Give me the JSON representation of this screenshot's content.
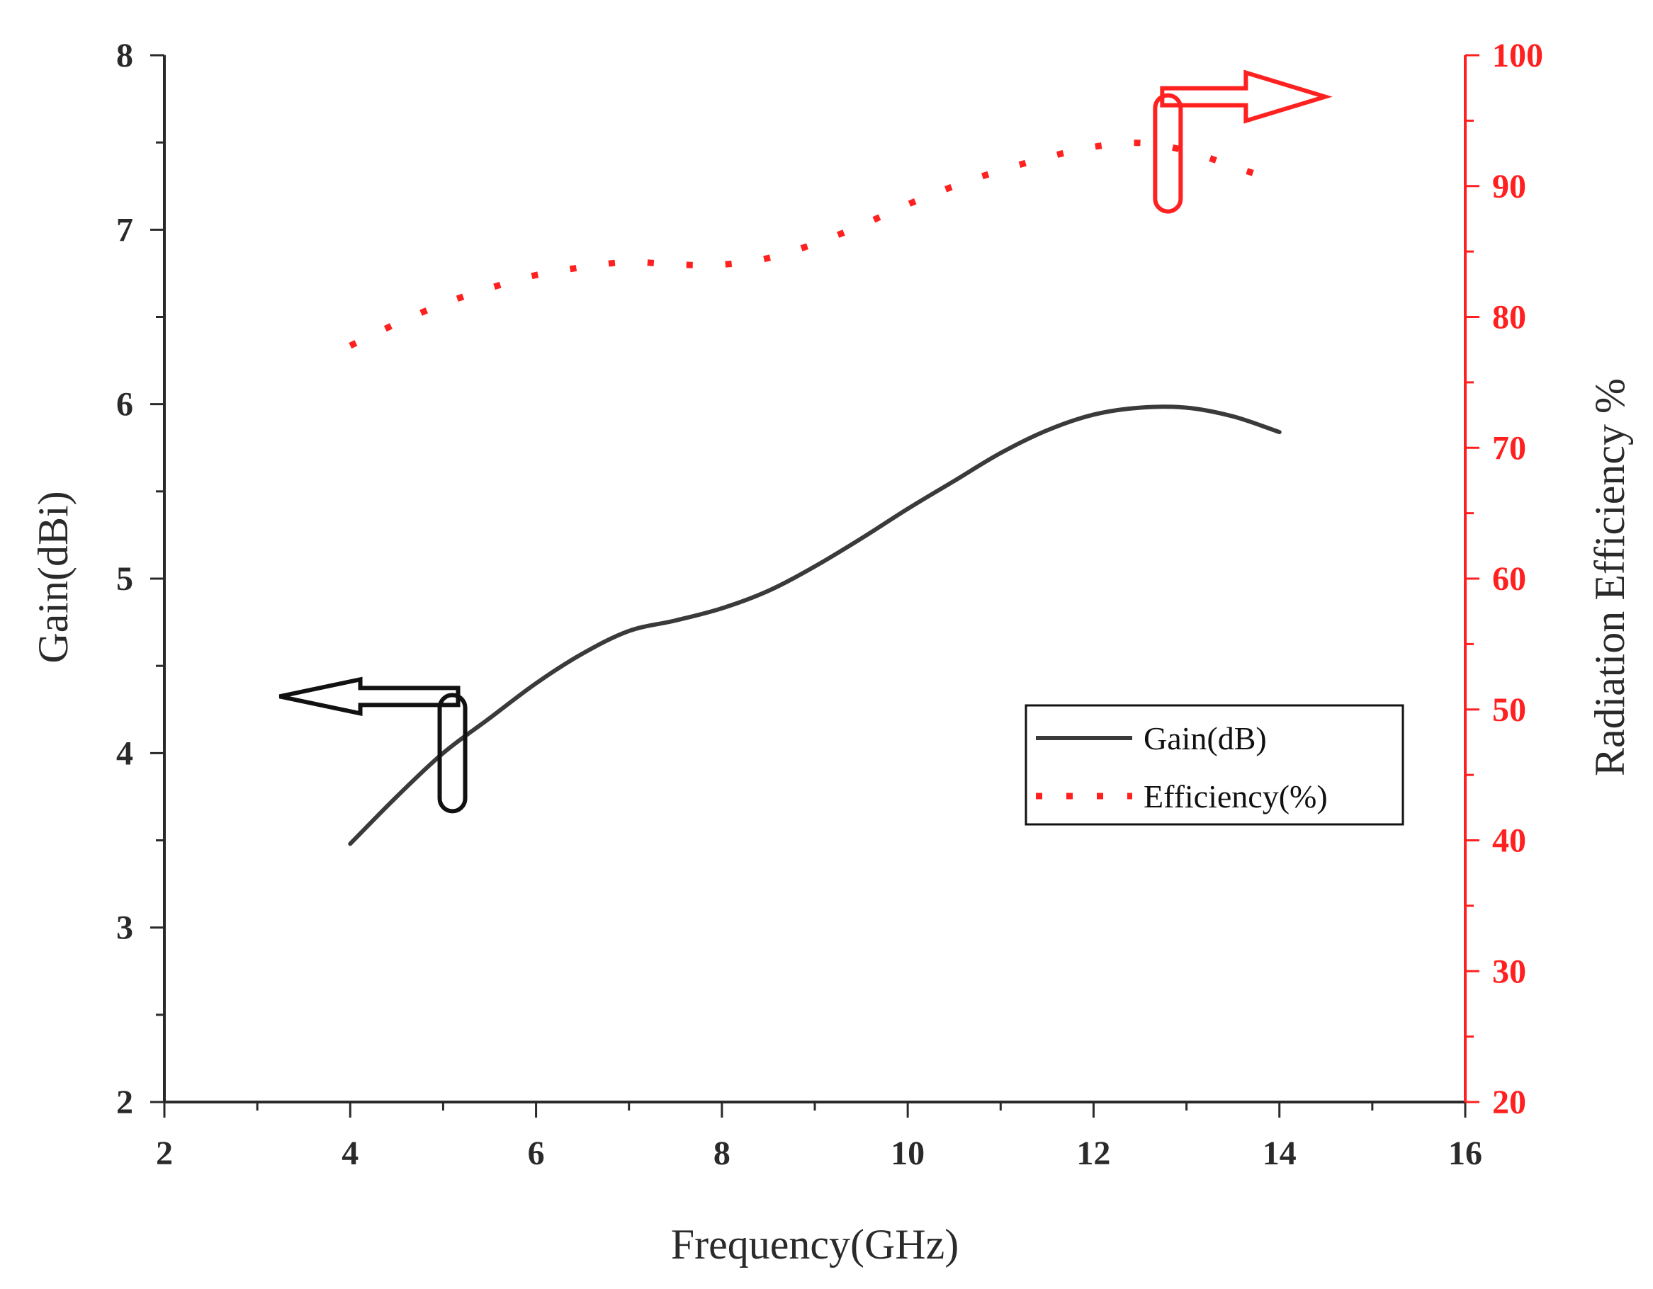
{
  "chart_data": {
    "type": "line",
    "title": "",
    "xlabel": "Frequency(GHz)",
    "ylabel_left": "Gain(dBi)",
    "ylabel_right": "Radiation Efficiency %",
    "xlim": [
      2,
      16
    ],
    "ylim_left": [
      2,
      8
    ],
    "ylim_right": [
      20,
      100
    ],
    "x_ticks": [
      2,
      4,
      6,
      8,
      10,
      12,
      14,
      16
    ],
    "y_left_ticks": [
      2,
      3,
      4,
      5,
      6,
      7,
      8
    ],
    "y_right_ticks": [
      20,
      30,
      40,
      50,
      60,
      70,
      80,
      90,
      100
    ],
    "grid": false,
    "legend_position": "center-right",
    "colors": {
      "gain": "#3a3a3a",
      "efficiency": "#ff2020",
      "right_axis": "#ff2020",
      "left_axis": "#2a2a2a"
    },
    "series": [
      {
        "name": "Gain(dB)",
        "axis": "left",
        "style": "solid",
        "x": [
          4.0,
          4.5,
          5.0,
          5.5,
          6.0,
          6.5,
          7.0,
          7.5,
          8.0,
          8.5,
          9.0,
          9.5,
          10.0,
          10.5,
          11.0,
          11.5,
          12.0,
          12.5,
          13.0,
          13.5,
          14.0
        ],
        "values": [
          3.48,
          3.75,
          4.0,
          4.2,
          4.4,
          4.57,
          4.7,
          4.76,
          4.83,
          4.93,
          5.07,
          5.23,
          5.4,
          5.56,
          5.72,
          5.85,
          5.94,
          5.98,
          5.98,
          5.93,
          5.84
        ]
      },
      {
        "name": "Efficiency(%)",
        "axis": "right",
        "style": "dotted",
        "x": [
          4.0,
          4.5,
          5.0,
          5.5,
          6.0,
          6.5,
          7.0,
          7.5,
          8.0,
          8.5,
          9.0,
          9.5,
          10.0,
          10.5,
          11.0,
          11.5,
          12.0,
          12.5,
          13.0,
          13.5,
          13.8
        ],
        "values": [
          77.8,
          79.5,
          81.0,
          82.2,
          83.2,
          83.8,
          84.2,
          84.0,
          84.0,
          84.5,
          85.6,
          87.0,
          88.6,
          90.0,
          91.2,
          92.2,
          93.0,
          93.3,
          92.7,
          91.5,
          90.8
        ]
      }
    ],
    "annotations": [
      {
        "kind": "axis-pointer-left",
        "target": "Gain(dB)",
        "at_x": 5.1,
        "at_y": 4.0
      },
      {
        "kind": "axis-pointer-right",
        "target": "Efficiency(%)",
        "at_x": 12.8,
        "at_y": 92.5
      }
    ]
  }
}
